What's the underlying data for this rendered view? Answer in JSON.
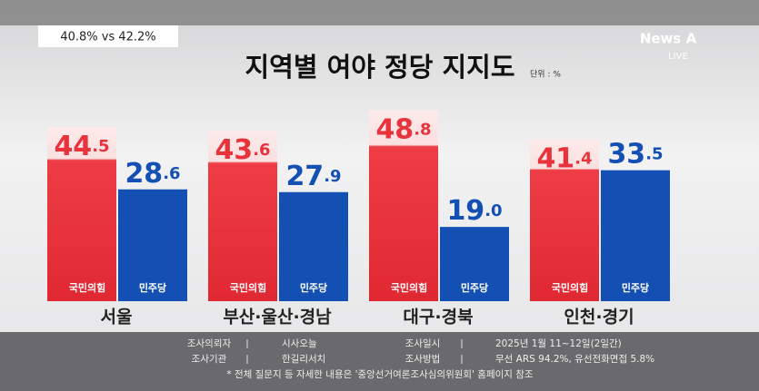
{
  "chart_data": {
    "type": "bar",
    "title": "지역별 여야 정당 지지도",
    "subtitle": "40.8% vs 42.2%",
    "unit": "단위 : %",
    "brand": "News A",
    "live": "LIVE",
    "categories": [
      "서울",
      "부산·울산·경남",
      "대구·경북",
      "인천·경기"
    ],
    "series": [
      {
        "name": "국민의힘",
        "color": "#e8323c",
        "values": [
          44.5,
          43.6,
          48.8,
          41.4
        ],
        "value_labels": [
          "44.5",
          "43.6",
          "48.8",
          "41.4"
        ]
      },
      {
        "name": "민주당",
        "color": "#1450b4",
        "values": [
          28.6,
          27.9,
          19,
          33.5
        ],
        "value_labels": [
          "28.6",
          "27.9",
          "19.0",
          "33.5"
        ]
      }
    ],
    "ylim": [
      0,
      55
    ],
    "footer": [
      [
        "조사의뢰자",
        "시사오늘",
        "조사일시",
        "2025년 1월 11~12일(2일간)"
      ],
      [
        "조사기관",
        "한길리서치",
        "조사방법",
        "무선 ARS 94.2%, 유선전화면접 5.8%"
      ]
    ],
    "note": "* 전체 질문지 등 자세한 내용은 '중앙선거여론조사심의위원회' 홈페이지 참조"
  }
}
